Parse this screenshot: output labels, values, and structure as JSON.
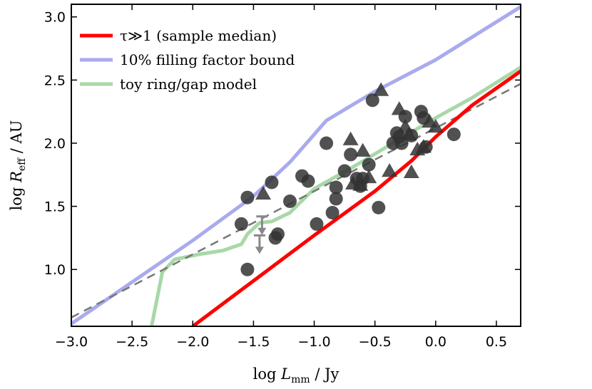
{
  "chart_data": {
    "type": "scatter",
    "xlabel": "log L_mm / Jy",
    "ylabel": "log R_eff / AU",
    "xlim": [
      -3.0,
      0.7
    ],
    "ylim": [
      0.55,
      3.1
    ],
    "xticks": [
      -3.0,
      -2.5,
      -2.0,
      -1.5,
      -1.0,
      -0.5,
      0.0,
      0.5
    ],
    "xtick_labels": [
      "−3.0",
      "−2.5",
      "−2.0",
      "−1.5",
      "−1.0",
      "−0.5",
      "0.0",
      "0.5"
    ],
    "yticks": [
      1.0,
      1.5,
      2.0,
      2.5,
      3.0
    ],
    "ytick_labels": [
      "1.0",
      "1.5",
      "2.0",
      "2.5",
      "3.0"
    ],
    "grid": false,
    "legend_position": "top-left",
    "colors": {
      "opt_thick": "#ff0000",
      "filling": "#aaaaee",
      "toy": "#a8d8a8",
      "dashed": "#777777",
      "markers": "#333333",
      "upper_limits": "#888888"
    },
    "legend": [
      {
        "key": "opt_thick",
        "label": "τ≫1 (sample median)"
      },
      {
        "key": "filling",
        "label": "10% filling factor bound"
      },
      {
        "key": "toy",
        "label": "toy ring/gap model"
      }
    ],
    "lines": {
      "opt_thick": {
        "name": "τ≫1 (sample median)",
        "x": [
          -2.0,
          -1.0,
          -0.5,
          -0.2,
          0.0,
          0.3,
          0.7
        ],
        "y": [
          0.55,
          1.27,
          1.62,
          1.86,
          2.05,
          2.3,
          2.57
        ]
      },
      "filling": {
        "name": "10% filling factor bound",
        "x": [
          -3.0,
          -2.5,
          -2.0,
          -1.5,
          -1.2,
          -0.9,
          -0.5,
          0.0,
          0.7
        ],
        "y": [
          0.57,
          0.9,
          1.23,
          1.58,
          1.85,
          2.18,
          2.41,
          2.66,
          3.08
        ]
      },
      "toy": {
        "name": "toy ring/gap model",
        "x": [
          -2.35,
          -2.25,
          -2.15,
          -1.95,
          -1.75,
          -1.6,
          -1.55,
          -1.45,
          -1.35,
          -1.2,
          -1.0,
          -0.7,
          -0.3,
          0.0,
          0.3,
          0.7
        ],
        "y": [
          0.5,
          0.98,
          1.08,
          1.12,
          1.15,
          1.2,
          1.28,
          1.37,
          1.38,
          1.45,
          1.64,
          1.8,
          2.03,
          2.2,
          2.36,
          2.6
        ]
      },
      "dashed": {
        "name": "best-fit relation",
        "x": [
          -3.0,
          0.7
        ],
        "y": [
          0.62,
          2.47
        ]
      }
    },
    "series": [
      {
        "name": "circles",
        "marker": "circle",
        "x": [
          -1.55,
          -1.6,
          -1.55,
          -1.35,
          -1.3,
          -1.32,
          -1.2,
          -1.1,
          -1.05,
          -0.98,
          -0.9,
          -0.85,
          -0.82,
          -0.82,
          -0.75,
          -0.7,
          -0.65,
          -0.62,
          -0.6,
          -0.55,
          -0.52,
          -0.47,
          -0.35,
          -0.32,
          -0.3,
          -0.28,
          -0.25,
          -0.2,
          -0.12,
          -0.1,
          -0.08,
          0.15
        ],
        "y": [
          1.57,
          1.36,
          1.0,
          1.69,
          1.28,
          1.25,
          1.54,
          1.74,
          1.7,
          1.36,
          2.0,
          1.45,
          1.56,
          1.65,
          1.78,
          1.91,
          1.72,
          1.66,
          1.72,
          1.83,
          2.34,
          1.49,
          2.0,
          2.08,
          2.05,
          2.0,
          2.21,
          2.06,
          2.25,
          2.2,
          1.97,
          2.07
        ]
      },
      {
        "name": "triangles",
        "marker": "triangle",
        "x": [
          -1.42,
          -0.68,
          -0.7,
          -0.6,
          -0.62,
          -0.55,
          -0.45,
          -0.38,
          -0.3,
          -0.25,
          -0.22,
          -0.2,
          -0.15,
          -0.1,
          -0.05,
          0.0
        ],
        "y": [
          1.6,
          1.68,
          2.03,
          1.94,
          1.67,
          1.73,
          2.42,
          1.78,
          2.27,
          2.13,
          2.07,
          1.77,
          1.95,
          1.97,
          2.17,
          2.13
        ]
      },
      {
        "name": "upper limits",
        "marker": "arrow-down",
        "x": [
          -1.43,
          -1.45
        ],
        "y": [
          1.42,
          1.27
        ]
      }
    ]
  }
}
